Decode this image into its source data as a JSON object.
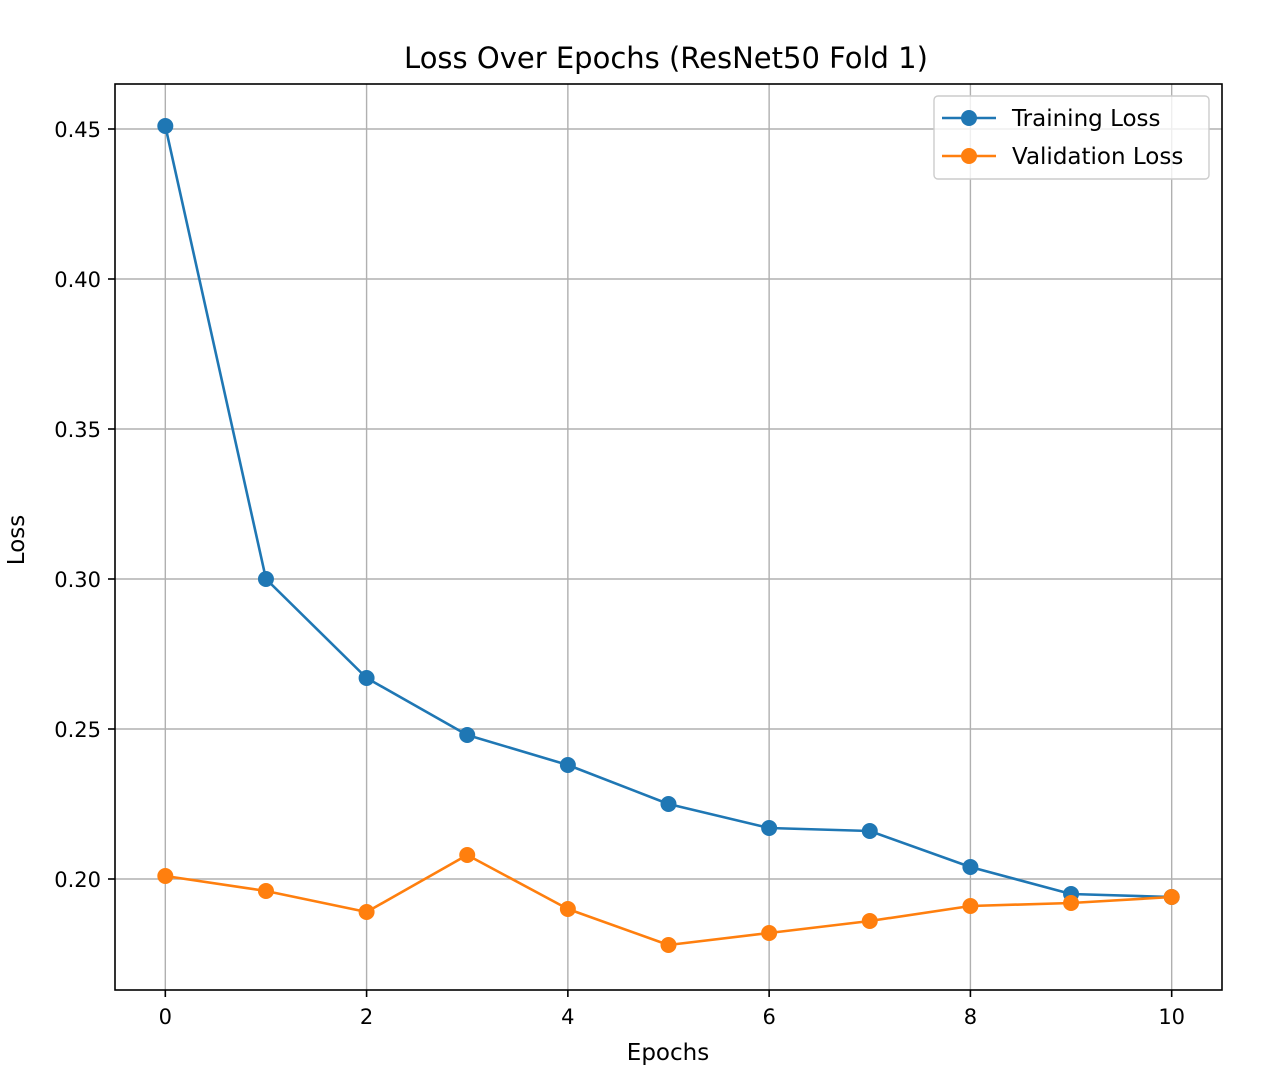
{
  "chart_data": {
    "type": "line",
    "title": "Loss Over Epochs (ResNet50 Fold 1)",
    "xlabel": "Epochs",
    "ylabel": "Loss",
    "xlim": [
      -0.5,
      10.5
    ],
    "ylim": [
      0.163,
      0.465
    ],
    "xticks": [
      0,
      2,
      4,
      6,
      8,
      10
    ],
    "xtick_labels": [
      "0",
      "2",
      "4",
      "6",
      "8",
      "10"
    ],
    "yticks": [
      0.2,
      0.25,
      0.3,
      0.35,
      0.4,
      0.45
    ],
    "ytick_labels": [
      "0.20",
      "0.25",
      "0.30",
      "0.35",
      "0.40",
      "0.45"
    ],
    "grid": true,
    "legend_position": "top-right",
    "x": [
      0,
      1,
      2,
      3,
      4,
      5,
      6,
      7,
      8,
      9,
      10
    ],
    "series": [
      {
        "name": "Training Loss",
        "color": "#1f77b4",
        "marker": "circle",
        "values": [
          0.451,
          0.3,
          0.267,
          0.248,
          0.238,
          0.225,
          0.217,
          0.216,
          0.204,
          0.195,
          0.194
        ]
      },
      {
        "name": "Validation Loss",
        "color": "#ff7f0e",
        "marker": "circle",
        "values": [
          0.201,
          0.196,
          0.189,
          0.208,
          0.19,
          0.178,
          0.182,
          0.186,
          0.191,
          0.192,
          0.194
        ]
      }
    ]
  }
}
